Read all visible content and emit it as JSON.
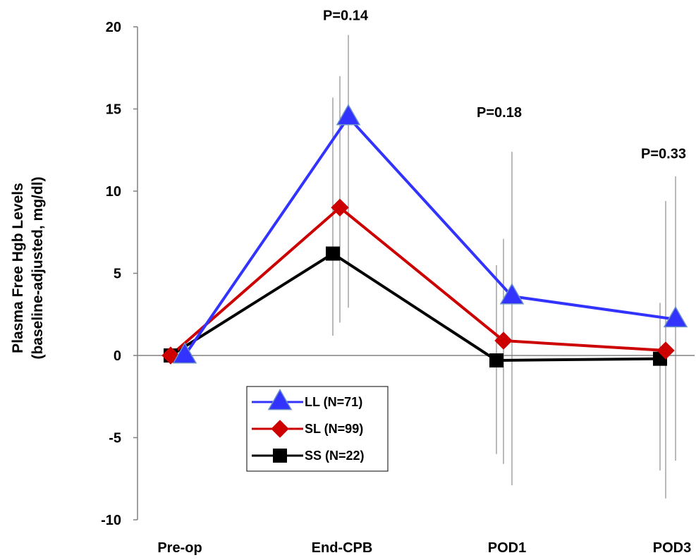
{
  "chart_data": {
    "type": "line",
    "title": "",
    "xlabel": "",
    "ylabel": [
      "Plasma Free Hgb Levels",
      "(baseline-adjusted, mg/dl)"
    ],
    "categories": [
      "Pre-op",
      "End-CPB",
      "POD1",
      "POD3"
    ],
    "ylim": [
      -10,
      20
    ],
    "yticks": [
      20,
      15,
      10,
      5,
      0,
      -5,
      -10
    ],
    "grid": false,
    "legend_position": "lower-left",
    "series": [
      {
        "name": "LL (N=71)",
        "color": "#3333ff",
        "marker": "triangle",
        "values": [
          0,
          14.5,
          3.6,
          2.2
        ],
        "error_high": [
          null,
          19.5,
          12.4,
          10.9
        ],
        "error_low": [
          null,
          2.9,
          -7.9,
          -6.4
        ]
      },
      {
        "name": "SL (N=99)",
        "color": "#cc0000",
        "marker": "diamond",
        "values": [
          0,
          9.0,
          0.9,
          0.3
        ],
        "error_high": [
          null,
          17.0,
          7.1,
          9.4
        ],
        "error_low": [
          null,
          2.0,
          -6.6,
          -8.7
        ]
      },
      {
        "name": "SS (N=22)",
        "color": "#000000",
        "marker": "square",
        "values": [
          0,
          6.2,
          -0.3,
          -0.2
        ],
        "error_high": [
          null,
          15.7,
          5.5,
          3.2
        ],
        "error_low": [
          null,
          1.2,
          -6.0,
          -7.0
        ]
      }
    ],
    "annotations": [
      {
        "text": "P=0.14",
        "category": "End-CPB",
        "y": 20.7
      },
      {
        "text": "P=0.18",
        "category": "POD1",
        "y": 14.8
      },
      {
        "text": "P=0.33",
        "category": "POD3",
        "y": 12.3
      }
    ]
  }
}
